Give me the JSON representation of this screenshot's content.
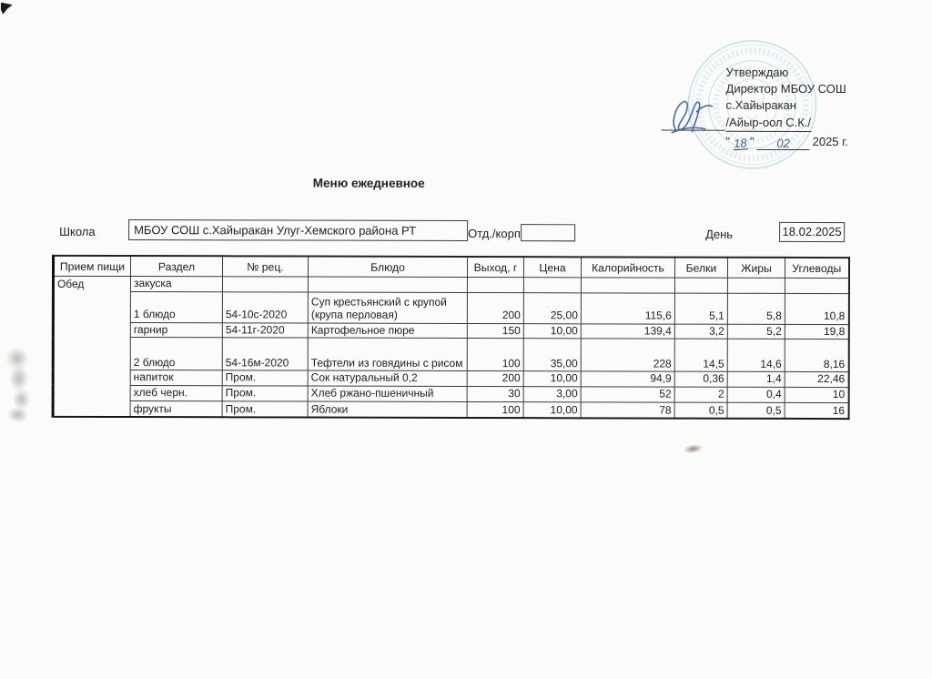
{
  "title": "Меню ежедневное",
  "approval": {
    "line1": "Утверждаю",
    "line2": "Директор МБОУ СОШ",
    "line3": "с.Хайыракан",
    "name_line": "/Айыр-оол С.К./",
    "quote_open": "\"",
    "day_handwritten": "18",
    "quote_close": "\"",
    "month_handwritten": "02",
    "year_text": "2025 г."
  },
  "form": {
    "school_label": "Школа",
    "school_value": "МБОУ СОШ с.Хайыракан Улуг-Хемского района РТ",
    "dept_label": "Отд./корп",
    "dept_value": "",
    "day_label": "День",
    "day_value": "18.02.2025"
  },
  "table": {
    "headers": [
      "Прием пищи",
      "Раздел",
      "№ рец.",
      "Блюдо",
      "Выход, г",
      "Цена",
      "Калорийность",
      "Белки",
      "Жиры",
      "Углеводы"
    ],
    "meal": "Обед",
    "rows": [
      {
        "razdel": "закуска",
        "rec": "",
        "dish": "",
        "out": "",
        "price": "",
        "cal": "",
        "protein": "",
        "fat": "",
        "carbs": ""
      },
      {
        "razdel": "1 блюдо",
        "rec": "54-10с-2020",
        "dish": "Суп крестьянский с крупой (крупа перловая)",
        "out": "200",
        "price": "25,00",
        "cal": "115,6",
        "protein": "5,1",
        "fat": "5,8",
        "carbs": "10,8"
      },
      {
        "razdel": "гарнир",
        "rec": "54-11г-2020",
        "dish": "Картофельное пюре",
        "out": "150",
        "price": "10,00",
        "cal": "139,4",
        "protein": "3,2",
        "fat": "5,2",
        "carbs": "19,8"
      },
      {
        "razdel": "2 блюдо",
        "rec": "54-16м-2020",
        "dish": "Тефтели из говядины с рисом",
        "out": "100",
        "price": "35,00",
        "cal": "228",
        "protein": "14,5",
        "fat": "14,6",
        "carbs": "8,16"
      },
      {
        "razdel": "напиток",
        "rec": "Пром.",
        "dish": "Сок натуральный 0,2",
        "out": "200",
        "price": "10,00",
        "cal": "94,9",
        "protein": "0,36",
        "fat": "1,4",
        "carbs": "22,46"
      },
      {
        "razdel": "хлеб черн.",
        "rec": "Пром.",
        "dish": "Хлеб ржано-пшеничный",
        "out": "30",
        "price": "3,00",
        "cal": "52",
        "protein": "2",
        "fat": "0,4",
        "carbs": "10"
      },
      {
        "razdel": "фрукты",
        "rec": "Пром.",
        "dish": "Яблоки",
        "out": "100",
        "price": "10,00",
        "cal": "78",
        "protein": "0,5",
        "fat": "0,5",
        "carbs": "16"
      }
    ]
  },
  "colors": {
    "stamp_blue": "#7fc0da",
    "handwriting_blue": "#3b5ea9",
    "ink": "#222222"
  }
}
